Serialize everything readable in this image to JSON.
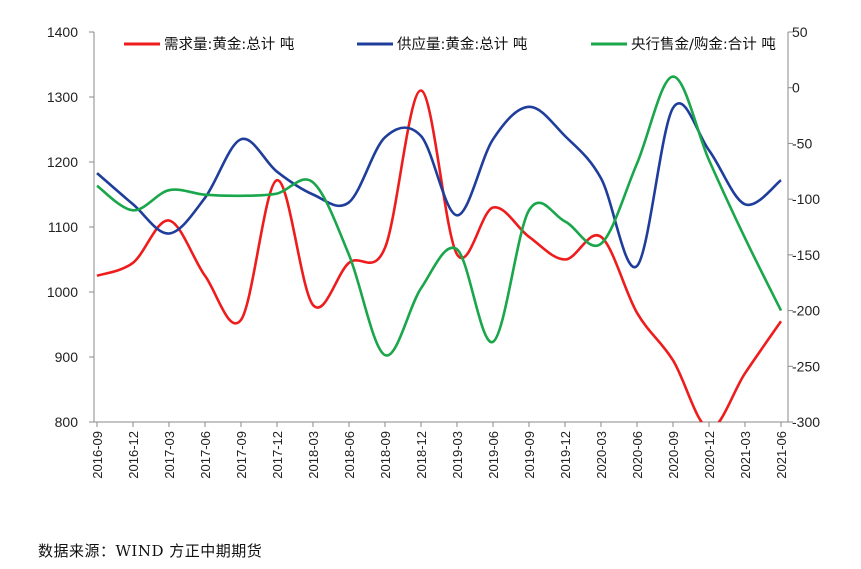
{
  "chart_data": {
    "type": "line",
    "title": "",
    "categories": [
      "2016-09",
      "2016-12",
      "2017-03",
      "2017-06",
      "2017-09",
      "2017-12",
      "2018-03",
      "2018-06",
      "2018-09",
      "2018-12",
      "2019-03",
      "2019-06",
      "2019-09",
      "2019-12",
      "2020-03",
      "2020-06",
      "2020-09",
      "2020-12",
      "2021-03",
      "2021-06"
    ],
    "y_left": {
      "range": [
        800,
        1400
      ],
      "ticks": [
        800,
        900,
        1000,
        1100,
        1200,
        1300,
        1400
      ]
    },
    "y_right": {
      "range": [
        -300,
        50
      ],
      "ticks": [
        -300,
        -250,
        -200,
        -150,
        -100,
        -50,
        0,
        50
      ]
    },
    "series": [
      {
        "name": "需求量:黄金:总计  吨",
        "axis": "left",
        "color": "#ee1c1c",
        "values": [
          1025,
          1045,
          1110,
          1025,
          957,
          1172,
          980,
          1045,
          1068,
          1310,
          1058,
          1130,
          1085,
          1050,
          1085,
          968,
          895,
          790,
          875,
          955
        ]
      },
      {
        "name": "供应量:黄金:总计  吨",
        "axis": "left",
        "color": "#1f3d9b",
        "values": [
          1183,
          1135,
          1090,
          1145,
          1235,
          1185,
          1150,
          1138,
          1238,
          1240,
          1118,
          1235,
          1285,
          1240,
          1175,
          1040,
          1283,
          1218,
          1135,
          1172
        ]
      },
      {
        "name": "央行售金/购金:合计  吨",
        "axis": "right",
        "color": "#1aa64a",
        "values": [
          -88,
          -110,
          -92,
          -96,
          -97,
          -95,
          -85,
          -150,
          -240,
          -180,
          -145,
          -228,
          -110,
          -120,
          -140,
          -68,
          10,
          -65,
          -135,
          -200
        ]
      }
    ]
  },
  "source_text": "数据来源：WIND  方正中期期货"
}
